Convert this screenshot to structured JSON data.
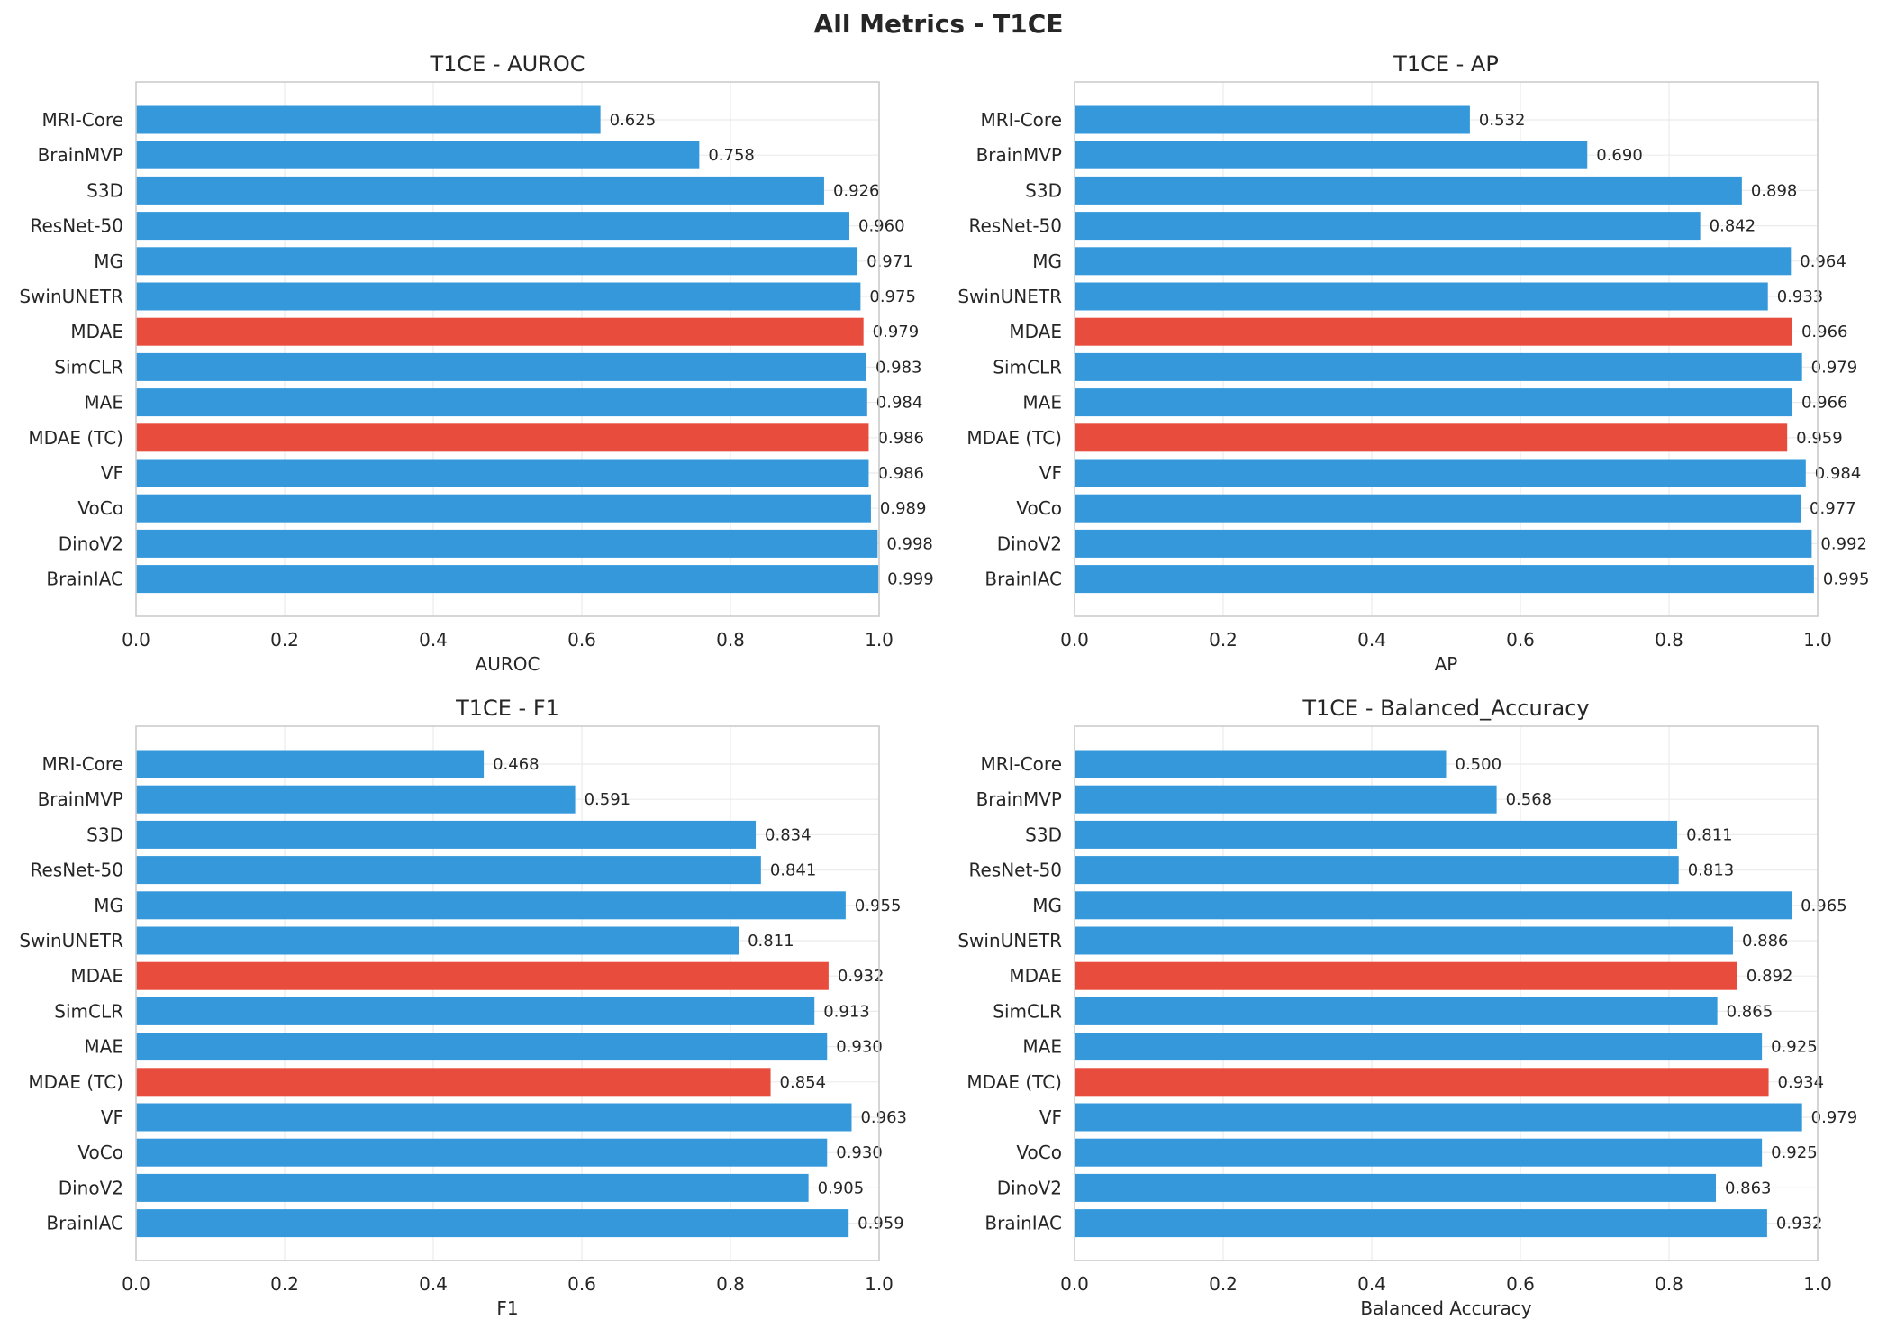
{
  "figure_title": "All Metrics - T1CE",
  "colors": {
    "default_bar": "#3498db",
    "highlight_bar": "#e74c3c"
  },
  "highlighted_categories": [
    "MDAE",
    "MDAE (TC)"
  ],
  "chart_data": [
    {
      "type": "bar",
      "orientation": "horizontal",
      "title": "T1CE - AUROC",
      "xlabel": "AUROC",
      "ylabel": "",
      "xlim": [
        0,
        1.0
      ],
      "xticks": [
        "0.0",
        "0.2",
        "0.4",
        "0.6",
        "0.8",
        "1.0"
      ],
      "grid": true,
      "categories": [
        "MRI-Core",
        "BrainMVP",
        "S3D",
        "ResNet-50",
        "MG",
        "SwinUNETR",
        "MDAE",
        "SimCLR",
        "MAE",
        "MDAE (TC)",
        "VF",
        "VoCo",
        "DinoV2",
        "BrainIAC"
      ],
      "values": [
        0.625,
        0.758,
        0.926,
        0.96,
        0.971,
        0.975,
        0.979,
        0.983,
        0.984,
        0.986,
        0.986,
        0.989,
        0.998,
        0.999
      ],
      "value_labels": [
        "0.625",
        "0.758",
        "0.926",
        "0.960",
        "0.971",
        "0.975",
        "0.979",
        "0.983",
        "0.984",
        "0.986",
        "0.986",
        "0.989",
        "0.998",
        "0.999"
      ]
    },
    {
      "type": "bar",
      "orientation": "horizontal",
      "title": "T1CE - AP",
      "xlabel": "AP",
      "ylabel": "",
      "xlim": [
        0,
        1.0
      ],
      "xticks": [
        "0.0",
        "0.2",
        "0.4",
        "0.6",
        "0.8",
        "1.0"
      ],
      "grid": true,
      "categories": [
        "MRI-Core",
        "BrainMVP",
        "S3D",
        "ResNet-50",
        "MG",
        "SwinUNETR",
        "MDAE",
        "SimCLR",
        "MAE",
        "MDAE (TC)",
        "VF",
        "VoCo",
        "DinoV2",
        "BrainIAC"
      ],
      "values": [
        0.532,
        0.69,
        0.898,
        0.842,
        0.964,
        0.933,
        0.966,
        0.979,
        0.966,
        0.959,
        0.984,
        0.977,
        0.992,
        0.995
      ],
      "value_labels": [
        "0.532",
        "0.690",
        "0.898",
        "0.842",
        "0.964",
        "0.933",
        "0.966",
        "0.979",
        "0.966",
        "0.959",
        "0.984",
        "0.977",
        "0.992",
        "0.995"
      ]
    },
    {
      "type": "bar",
      "orientation": "horizontal",
      "title": "T1CE - F1",
      "xlabel": "F1",
      "ylabel": "",
      "xlim": [
        0,
        1.0
      ],
      "xticks": [
        "0.0",
        "0.2",
        "0.4",
        "0.6",
        "0.8",
        "1.0"
      ],
      "grid": true,
      "categories": [
        "MRI-Core",
        "BrainMVP",
        "S3D",
        "ResNet-50",
        "MG",
        "SwinUNETR",
        "MDAE",
        "SimCLR",
        "MAE",
        "MDAE (TC)",
        "VF",
        "VoCo",
        "DinoV2",
        "BrainIAC"
      ],
      "values": [
        0.468,
        0.591,
        0.834,
        0.841,
        0.955,
        0.811,
        0.932,
        0.913,
        0.93,
        0.854,
        0.963,
        0.93,
        0.905,
        0.959
      ],
      "value_labels": [
        "0.468",
        "0.591",
        "0.834",
        "0.841",
        "0.955",
        "0.811",
        "0.932",
        "0.913",
        "0.930",
        "0.854",
        "0.963",
        "0.930",
        "0.905",
        "0.959"
      ]
    },
    {
      "type": "bar",
      "orientation": "horizontal",
      "title": "T1CE - Balanced_Accuracy",
      "xlabel": "Balanced Accuracy",
      "ylabel": "",
      "xlim": [
        0,
        1.0
      ],
      "xticks": [
        "0.0",
        "0.2",
        "0.4",
        "0.6",
        "0.8",
        "1.0"
      ],
      "grid": true,
      "categories": [
        "MRI-Core",
        "BrainMVP",
        "S3D",
        "ResNet-50",
        "MG",
        "SwinUNETR",
        "MDAE",
        "SimCLR",
        "MAE",
        "MDAE (TC)",
        "VF",
        "VoCo",
        "DinoV2",
        "BrainIAC"
      ],
      "values": [
        0.5,
        0.568,
        0.811,
        0.813,
        0.965,
        0.886,
        0.892,
        0.865,
        0.925,
        0.934,
        0.979,
        0.925,
        0.863,
        0.932
      ],
      "value_labels": [
        "0.500",
        "0.568",
        "0.811",
        "0.813",
        "0.965",
        "0.886",
        "0.892",
        "0.865",
        "0.925",
        "0.934",
        "0.979",
        "0.925",
        "0.863",
        "0.932"
      ]
    }
  ]
}
